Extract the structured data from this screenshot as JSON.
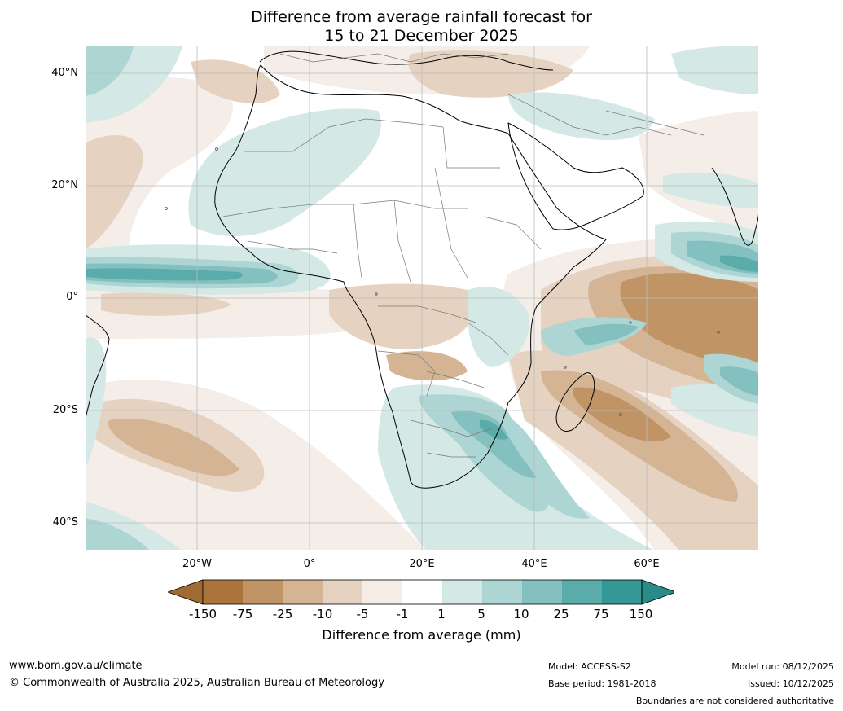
{
  "title": {
    "line1": "Difference from average rainfall forecast for",
    "line2": "15 to 21 December 2025"
  },
  "map": {
    "lat_labels": [
      "40°N",
      "20°N",
      "0°",
      "20°S",
      "40°S"
    ],
    "lon_labels": [
      "20°W",
      "0°",
      "20°E",
      "40°E",
      "60°E"
    ],
    "extent": {
      "lon_min": -40,
      "lon_max": 80,
      "lat_min": -45,
      "lat_max": 45
    }
  },
  "legend": {
    "title": "Difference from average (mm)",
    "tick_labels": [
      "-150",
      "-75",
      "-25",
      "-10",
      "-5",
      "-1",
      "1",
      "5",
      "10",
      "25",
      "75",
      "150"
    ],
    "colors": {
      "lt_-150": "#a06a33",
      "m150_m75": "#ab743b",
      "m75_m25": "#c09465",
      "m25_m10": "#d4b492",
      "m10_m5": "#e5d2c0",
      "m5_m1": "#f5ede8",
      "m1_p1": "#ffffff",
      "p1_p5": "#d4e8e6",
      "p5_p10": "#acd5d4",
      "p10_p25": "#84c0bf",
      "p25_p75": "#5aacab",
      "p75_p150": "#339896",
      "gt_150": "#2b8b88"
    }
  },
  "footer": {
    "website": "www.bom.gov.au/climate",
    "copyright": "© Commonwealth of Australia 2025, Australian Bureau of Meteorology",
    "model": "Model: ACCESS-S2",
    "base_period": "Base period: 1981-2018",
    "model_run": "Model run: 08/12/2025",
    "issued": "Issued: 10/12/2025",
    "disclaimer": "Boundaries are not considered authoritative"
  }
}
